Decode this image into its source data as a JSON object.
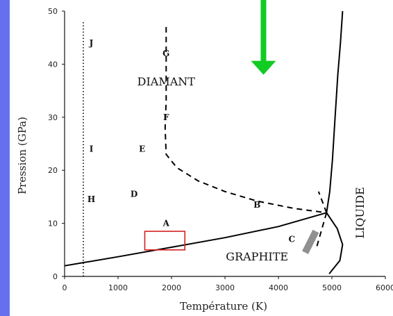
{
  "chart_data": {
    "type": "line",
    "title": "",
    "xlabel": "Température (K)",
    "ylabel": "Pression (GPa)",
    "xlim": [
      0,
      6000
    ],
    "ylim": [
      0,
      50
    ],
    "x_ticks": [
      0,
      1000,
      2000,
      3000,
      4000,
      5000,
      6000
    ],
    "x_tick_labels": [
      "0",
      "1000",
      "2000",
      "3000",
      "4000",
      "5000",
      "6000"
    ],
    "y_ticks": [
      0,
      10,
      20,
      30,
      40,
      50
    ],
    "y_tick_labels": [
      "0",
      "10",
      "20",
      "30",
      "40",
      "50"
    ],
    "grid": false,
    "series": [
      {
        "style": "solid",
        "points": [
          [
            0,
            2
          ],
          [
            1000,
            3.7
          ],
          [
            2000,
            5.5
          ],
          [
            3000,
            7.3
          ],
          [
            4000,
            9.4
          ],
          [
            4900,
            12
          ]
        ]
      },
      {
        "style": "solid",
        "points": [
          [
            4900,
            12
          ],
          [
            4960,
            16
          ],
          [
            5010,
            22
          ],
          [
            5060,
            30
          ],
          [
            5110,
            38
          ],
          [
            5160,
            44
          ],
          [
            5200,
            50
          ]
        ]
      },
      {
        "style": "solid",
        "points": [
          [
            4900,
            12
          ],
          [
            5100,
            9
          ],
          [
            5200,
            6
          ],
          [
            5150,
            3
          ],
          [
            4950,
            0.5
          ]
        ]
      },
      {
        "style": "dashed",
        "points": [
          [
            1900,
            47
          ],
          [
            1900,
            40
          ],
          [
            1900,
            33
          ],
          [
            1880,
            28
          ],
          [
            1900,
            23
          ],
          [
            2100,
            20.5
          ],
          [
            2500,
            18
          ],
          [
            3000,
            16
          ],
          [
            3600,
            14.2
          ],
          [
            4300,
            12.8
          ],
          [
            4900,
            12
          ]
        ]
      },
      {
        "style": "dashed",
        "points": [
          [
            4900,
            12
          ],
          [
            4750,
            16
          ]
        ]
      },
      {
        "style": "dashed",
        "points": [
          [
            4900,
            12
          ],
          [
            4700,
            5
          ]
        ]
      },
      {
        "style": "dotted",
        "points": [
          [
            350,
            0
          ],
          [
            350,
            48
          ]
        ]
      }
    ],
    "regions": [
      {
        "label": "DIAMANT",
        "x": 1900,
        "y": 36
      },
      {
        "label": "GRAPHITE",
        "x": 3600,
        "y": 3
      },
      {
        "label": "LIQUIDE",
        "x": 5600,
        "y": 12,
        "rotated": true
      }
    ],
    "points": [
      {
        "label": "J",
        "x": 500,
        "y": 44
      },
      {
        "label": "G",
        "x": 1900,
        "y": 42
      },
      {
        "label": "F",
        "x": 1900,
        "y": 30
      },
      {
        "label": "I",
        "x": 500,
        "y": 24
      },
      {
        "label": "E",
        "x": 1450,
        "y": 24
      },
      {
        "label": "D",
        "x": 1300,
        "y": 15.5
      },
      {
        "label": "H",
        "x": 500,
        "y": 14.5
      },
      {
        "label": "A",
        "x": 1900,
        "y": 10
      },
      {
        "label": "B",
        "x": 3600,
        "y": 13.5
      },
      {
        "label": "C",
        "x": 4250,
        "y": 7
      }
    ],
    "annotations": [
      {
        "kind": "rectangle",
        "color": "#d42020",
        "x": [
          1500,
          2250
        ],
        "y": [
          5,
          8.5
        ]
      },
      {
        "kind": "band",
        "color": "#909090",
        "x": [
          4500,
          4700
        ],
        "y": [
          4.5,
          8.5
        ]
      },
      {
        "kind": "arrow",
        "color": "#11cc22",
        "direction": "down",
        "x": 3720,
        "y_from": 53,
        "y_to": 38
      }
    ]
  }
}
